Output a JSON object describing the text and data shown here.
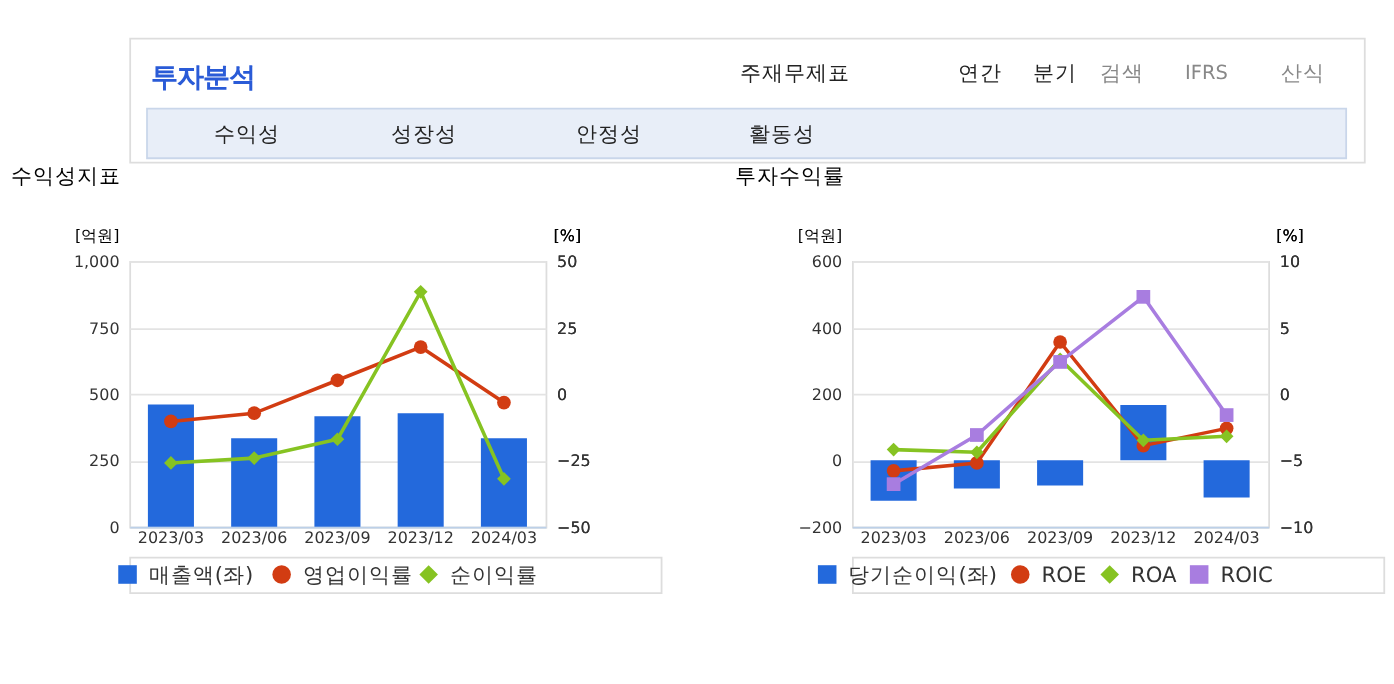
{
  "chart_data": [
    {
      "type": "bar",
      "title": "수익성지표",
      "annotations": [
        "투자분석",
        "주재무제표",
        "연간",
        "분기",
        "검색",
        "IFRS",
        "산식",
        "수익성",
        "성장성",
        "안정성",
        "활동성"
      ],
      "categories": [
        "2023/03",
        "2023/06",
        "2023/09",
        "2023/12",
        "2024/03"
      ],
      "ylabel": "[억원]",
      "y2label": "[%]",
      "ylim": [
        0,
        1000
      ],
      "yticks": [
        0,
        250,
        500,
        750,
        {
          "value": 1000,
          "label": "1,000"
        }
      ],
      "y2lim": [
        -50,
        50
      ],
      "y2ticks": [
        -50,
        -25,
        0,
        25,
        50
      ],
      "grid": "y",
      "legend": "bottom",
      "series": [
        {
          "name": "매출액(좌)",
          "color": "#2369dc",
          "values": [
            460,
            333,
            416,
            427,
            333
          ]
        },
        {
          "name": "영업이익률",
          "type": "line",
          "axis": "y2",
          "marker": "circle",
          "color": "#d23c12",
          "values": [
            -10.4,
            -7.3,
            5.1,
            17.6,
            -3.3
          ]
        },
        {
          "name": "순이익률",
          "type": "line",
          "axis": "y2",
          "marker": "diamond",
          "color": "#86c322",
          "values": [
            -26,
            -24.2,
            -17.1,
            38.4,
            -32
          ]
        }
      ]
    },
    {
      "type": "bar",
      "title": "투자수익률",
      "categories": [
        "2023/03",
        "2023/06",
        "2023/09",
        "2023/12",
        "2024/03"
      ],
      "ylabel": "[억원]",
      "y2label": "[%]",
      "ylim": [
        -200,
        600
      ],
      "yticks": [
        -200,
        0,
        200,
        400,
        600
      ],
      "y2lim": [
        -10,
        10
      ],
      "y2ticks": [
        -10,
        -5,
        0,
        5,
        10
      ],
      "grid": "y",
      "legend": "bottom",
      "series": [
        {
          "name": "당기순이익(좌)",
          "color": "#2369dc",
          "values": [
            -122,
            -85,
            -76,
            166,
            -112
          ]
        },
        {
          "name": "ROE",
          "type": "line",
          "axis": "y2",
          "marker": "circle",
          "color": "#d23c12",
          "values": [
            -5.8,
            -5.2,
            3.9,
            -3.9,
            -2.6
          ]
        },
        {
          "name": "ROA",
          "type": "line",
          "axis": "y2",
          "marker": "diamond",
          "color": "#86c322",
          "values": [
            -4.2,
            -4.4,
            2.6,
            -3.5,
            -3.2
          ]
        },
        {
          "name": "ROIC",
          "type": "line",
          "axis": "y2",
          "marker": "square",
          "color": "#a87de0",
          "values": [
            -6.8,
            -3.1,
            2.4,
            7.3,
            -1.6
          ]
        }
      ]
    }
  ]
}
